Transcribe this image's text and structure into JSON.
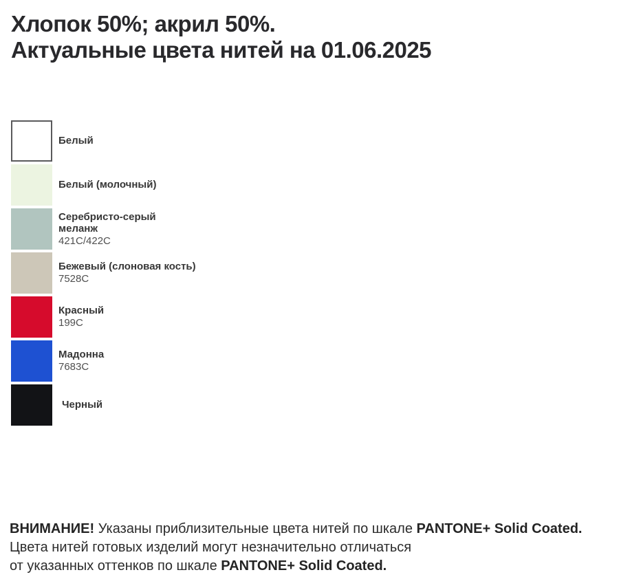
{
  "title": {
    "line1": "Хлопок 50%; акрил 50%.",
    "line2": "Актуальные цвета нитей на 01.06.2025"
  },
  "colors": [
    {
      "name": "Белый",
      "code": "",
      "hex": "#ffffff",
      "border": "#59595b"
    },
    {
      "name": "Белый (молочный)",
      "code": "",
      "hex": "#ecf4e1"
    },
    {
      "name": "Серебристо-серый\nмеланж",
      "code": "421C/422C",
      "hex": "#b1c5bf"
    },
    {
      "name": "Бежевый (слоновая кость)",
      "code": "7528C",
      "hex": "#cdc7b8"
    },
    {
      "name": "Красный",
      "code": "199C",
      "hex": "#d60b2c"
    },
    {
      "name": "Мадонна",
      "code": "7683C",
      "hex": "#1e51d2"
    },
    {
      "name": "Черный",
      "code": "",
      "hex": "#121316"
    }
  ],
  "note": {
    "line1_bold_prefix": "ВНИМАНИЕ!",
    "line1_text": "Указаны приблизительные цвета нитей по шкале",
    "line1_bold_suffix": "PANTONE+ Solid Coated.",
    "line2": "Цвета нитей готовых изделий могут незначительно отличаться",
    "line3_text": "от указанных оттенков по шкале",
    "line3_bold": "PANTONE+ Solid Coated."
  }
}
